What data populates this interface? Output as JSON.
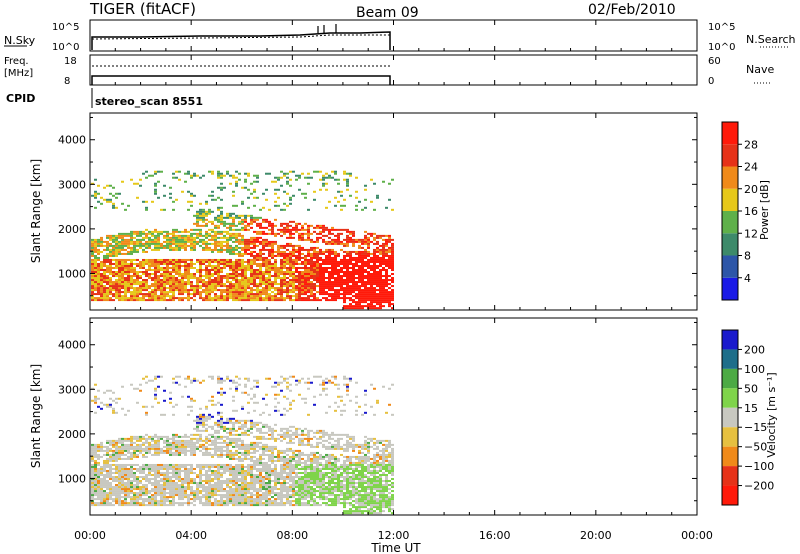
{
  "header": {
    "title": "TIGER (fitACF)",
    "beam": "Beam 09",
    "date": "02/Feb/2010"
  },
  "panels": {
    "noise": {
      "left_label": "N.Sky",
      "left_ticks": [
        "10^5",
        "10^0"
      ],
      "right_ticks": [
        "10^5",
        "10^0"
      ],
      "right_label": "N.Search"
    },
    "freq": {
      "left_label_1": "Freq.",
      "left_label_2": "[MHz]",
      "left_ticks": [
        "18",
        "8"
      ],
      "right_ticks": [
        "60",
        "0"
      ],
      "right_label": "Nave"
    },
    "cpid": {
      "label": "CPID",
      "text": "stereo_scan 8551"
    }
  },
  "chart_data": [
    {
      "type": "heatmap",
      "name": "power",
      "ylabel": "Slant Range [km]",
      "yticks": [
        1000,
        2000,
        3000,
        4000
      ],
      "ylim": [
        180,
        4600
      ],
      "colorbar_label": "Power [dB]",
      "colorbar_ticks": [
        "4",
        "8",
        "12",
        "16",
        "20",
        "24",
        "28"
      ],
      "colors": [
        "#1a1ae6",
        "#2d56a8",
        "#3d8a6a",
        "#5fb04a",
        "#e6c81a",
        "#f08a1a",
        "#e63218",
        "#ff1a0a"
      ]
    },
    {
      "type": "heatmap",
      "name": "velocity",
      "ylabel": "Slant Range [km]",
      "yticks": [
        1000,
        2000,
        3000,
        4000
      ],
      "ylim": [
        180,
        4600
      ],
      "colorbar_label": "Velocity [m s⁻¹]",
      "colorbar_ticks": [
        "200",
        "100",
        "50",
        "15",
        "−15",
        "−50",
        "−100",
        "−200"
      ],
      "colors": [
        "#1a1acc",
        "#1e6e8a",
        "#4caa44",
        "#7fd44a",
        "#c8c8c0",
        "#e6c040",
        "#f08a1a",
        "#e63218",
        "#ff1a0a"
      ]
    }
  ],
  "xaxis": {
    "label": "Time UT",
    "ticks": [
      "00:00",
      "04:00",
      "08:00",
      "12:00",
      "16:00",
      "20:00",
      "00:00"
    ],
    "data_end_hour": 12
  }
}
